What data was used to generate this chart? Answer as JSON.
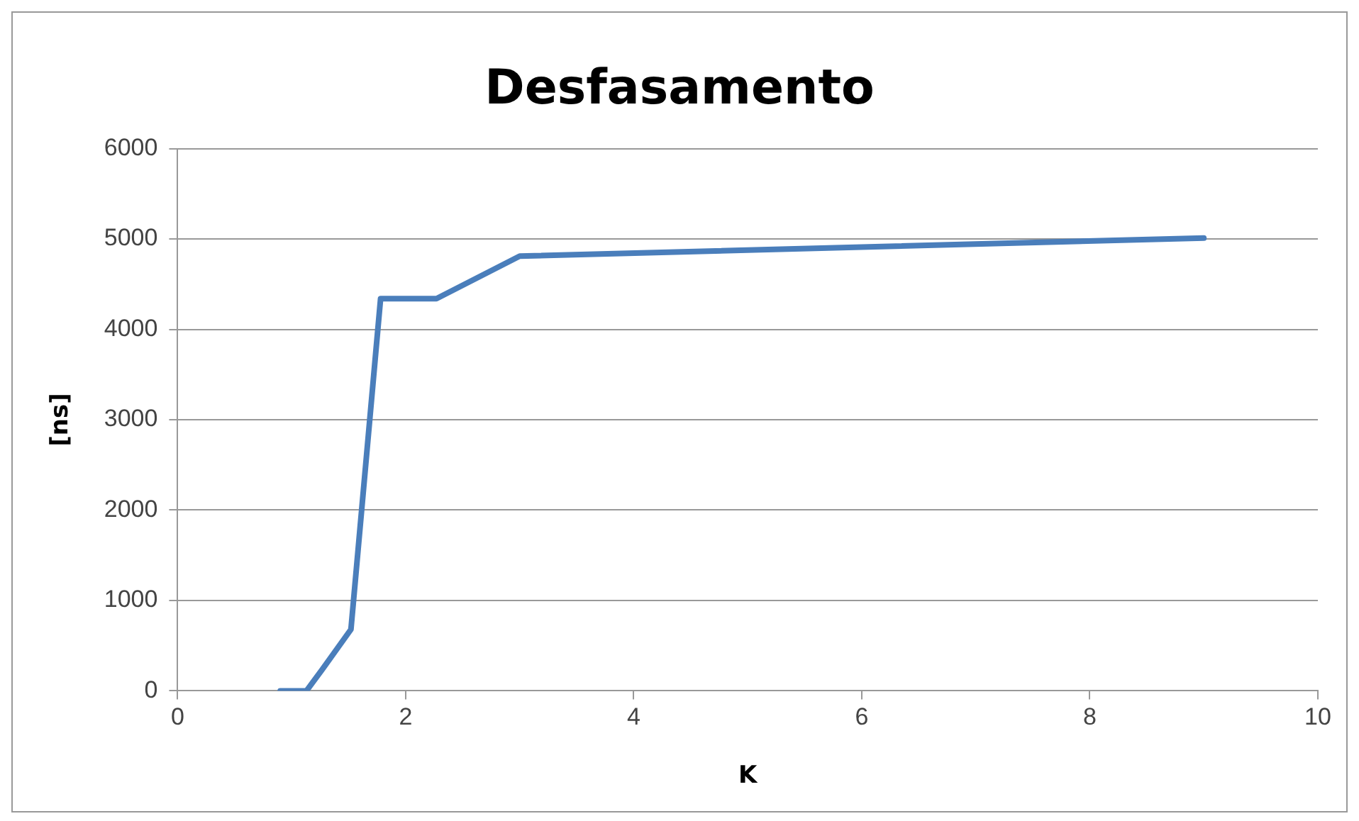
{
  "chart_data": {
    "type": "line",
    "title": "Desfasamento",
    "xlabel": "K",
    "ylabel": "[ns]",
    "series": [
      {
        "color": "#4a7ebb",
        "x": [
          0.9,
          1.13,
          1.27,
          1.52,
          1.78,
          2.27,
          3.0,
          9.0
        ],
        "values": [
          0,
          0,
          240,
          680,
          4340,
          4340,
          4810,
          5010
        ]
      }
    ],
    "xlim": [
      0,
      10
    ],
    "xticks": [
      0,
      2,
      4,
      6,
      8,
      10
    ],
    "ylim": [
      0,
      6000
    ],
    "yticks": [
      0,
      1000,
      2000,
      3000,
      4000,
      5000,
      6000
    ],
    "grid": "y",
    "legend": false,
    "marker": "none",
    "line_style": "solid"
  }
}
